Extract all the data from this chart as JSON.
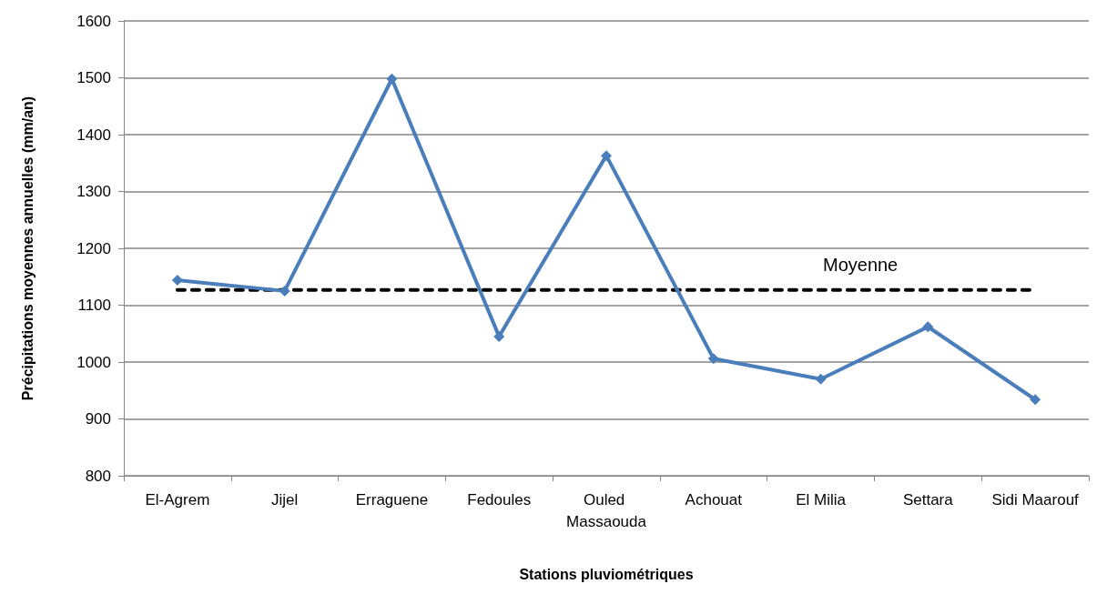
{
  "chart_data": {
    "type": "line",
    "xlabel": "Stations pluviométriques",
    "ylabel": "Précipitations moyennes annuelles (mm/an)",
    "categories": [
      "El-Agrem",
      "Jijel",
      "Erraguene",
      "Fedoules",
      "Ouled Massaouda",
      "Achouat",
      "El Milia",
      "Settara",
      "Sidi Maarouf"
    ],
    "series": [
      {
        "color": "#4a7ebb",
        "marker": "diamond",
        "line_style": "solid",
        "values": [
          1144,
          1125,
          1498,
          1045,
          1363,
          1006,
          970,
          1062,
          934
        ]
      },
      {
        "name": "Moyenne",
        "color": "#000000",
        "marker": "none",
        "line_style": "dashed",
        "values": [
          1127,
          1127,
          1127,
          1127,
          1127,
          1127,
          1127,
          1127,
          1127
        ]
      }
    ],
    "ylim": [
      800,
      1600
    ],
    "yticks": [
      800,
      900,
      1000,
      1100,
      1200,
      1300,
      1400,
      1500,
      1600
    ],
    "grid": "y",
    "legend": false
  }
}
